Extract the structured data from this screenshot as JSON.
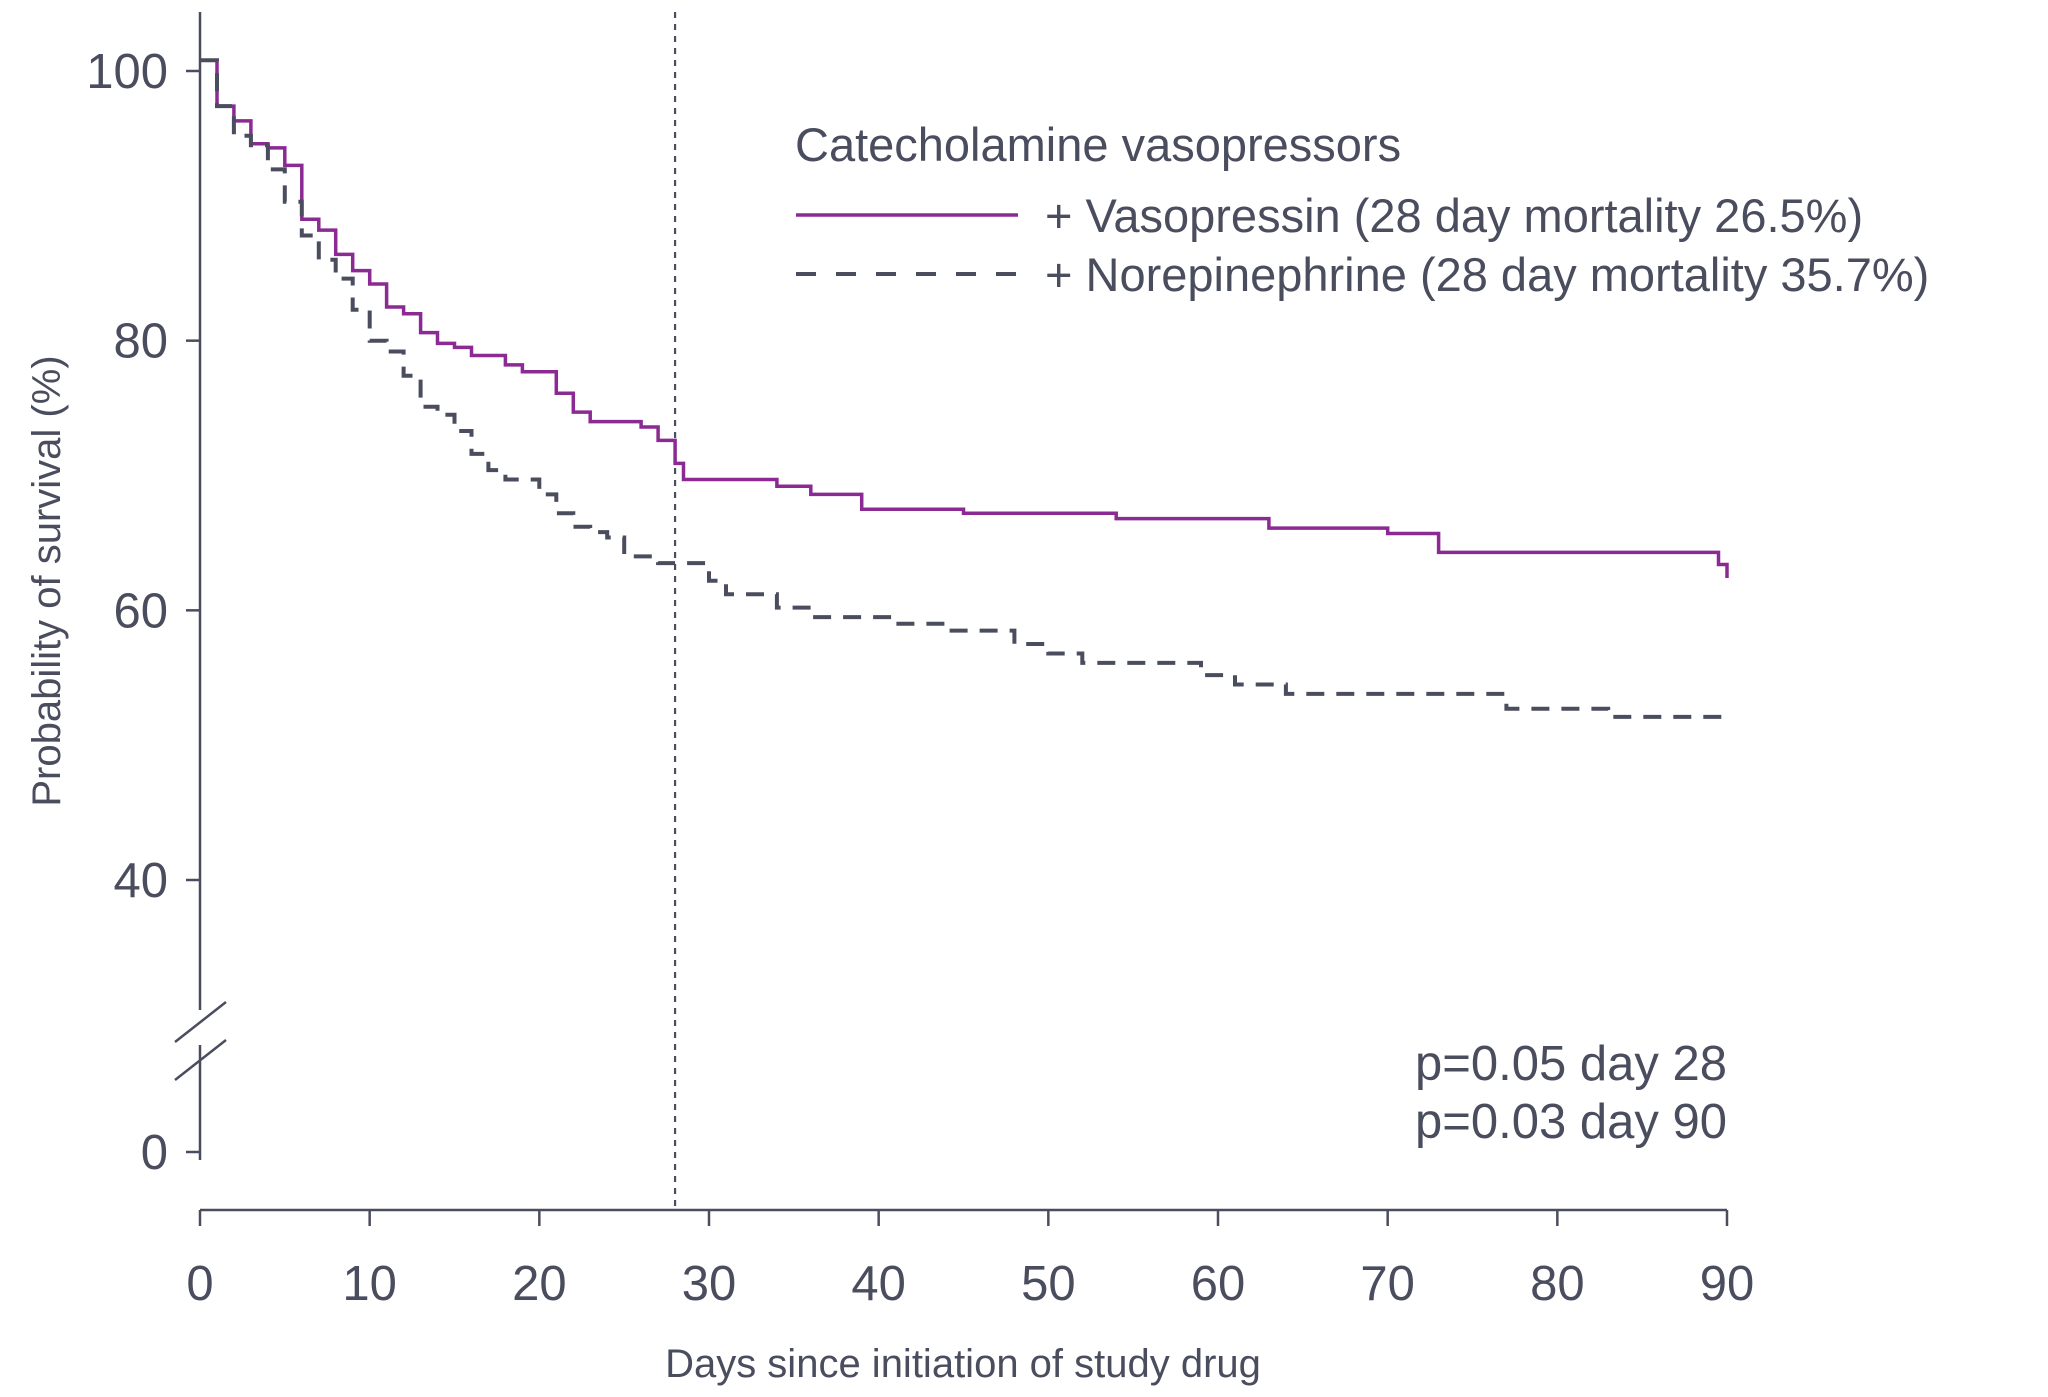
{
  "chart_data": {
    "type": "line",
    "subtype": "kaplan-meier step",
    "xlabel": "Days since initiation of study drug",
    "ylabel": "Probability of survival (%)",
    "xlim": [
      0,
      90
    ],
    "x_ticks": [
      0,
      10,
      20,
      30,
      40,
      50,
      60,
      70,
      80,
      90
    ],
    "y_ticks": [
      0,
      40,
      60,
      80,
      100
    ],
    "y_axis_break": "between 0 and 40",
    "grid": false,
    "legend_position": "top-right",
    "legend_title": "Catecholamine vasopressors",
    "reference_line_x": 28,
    "reference_line_style": "dotted",
    "annotations": [
      "p=0.05 day 28",
      "p=0.03 day 90"
    ],
    "series": [
      {
        "name": "+ Vasopressin (28 day mortality 26.5%)",
        "color": "#8b2a93",
        "style": "solid",
        "points": [
          [
            0,
            100.8
          ],
          [
            1,
            100.8
          ],
          [
            1,
            97.4
          ],
          [
            2,
            97.4
          ],
          [
            2,
            96.3
          ],
          [
            3,
            96.3
          ],
          [
            3,
            94.6
          ],
          [
            4,
            94.6
          ],
          [
            4,
            94.3
          ],
          [
            5,
            94.3
          ],
          [
            5,
            93.0
          ],
          [
            6,
            93.0
          ],
          [
            6,
            89.0
          ],
          [
            7,
            89.0
          ],
          [
            7,
            88.2
          ],
          [
            8,
            88.2
          ],
          [
            8,
            86.4
          ],
          [
            9,
            86.4
          ],
          [
            9,
            85.2
          ],
          [
            10,
            85.2
          ],
          [
            10,
            84.2
          ],
          [
            11,
            84.2
          ],
          [
            11,
            82.5
          ],
          [
            12,
            82.5
          ],
          [
            12,
            82.0
          ],
          [
            13,
            82.0
          ],
          [
            13,
            80.6
          ],
          [
            14,
            80.6
          ],
          [
            14,
            79.8
          ],
          [
            15,
            79.8
          ],
          [
            15,
            79.5
          ],
          [
            16,
            79.5
          ],
          [
            16,
            78.9
          ],
          [
            18,
            78.9
          ],
          [
            18,
            78.2
          ],
          [
            19,
            78.2
          ],
          [
            19,
            77.7
          ],
          [
            21,
            77.7
          ],
          [
            21,
            76.1
          ],
          [
            22,
            76.1
          ],
          [
            22,
            74.7
          ],
          [
            23,
            74.7
          ],
          [
            23,
            74.0
          ],
          [
            26,
            74.0
          ],
          [
            26,
            73.6
          ],
          [
            27,
            73.6
          ],
          [
            27,
            72.6
          ],
          [
            28,
            72.6
          ],
          [
            28,
            70.9
          ],
          [
            28.5,
            70.9
          ],
          [
            28.5,
            69.7
          ],
          [
            34,
            69.7
          ],
          [
            34,
            69.2
          ],
          [
            36,
            69.2
          ],
          [
            36,
            68.6
          ],
          [
            39,
            68.6
          ],
          [
            39,
            67.5
          ],
          [
            45,
            67.5
          ],
          [
            45,
            67.2
          ],
          [
            54,
            67.2
          ],
          [
            54,
            66.8
          ],
          [
            63,
            66.8
          ],
          [
            63,
            66.1
          ],
          [
            70,
            66.1
          ],
          [
            70,
            65.7
          ],
          [
            73,
            65.7
          ],
          [
            73,
            64.3
          ],
          [
            89.5,
            64.3
          ],
          [
            89.5,
            63.4
          ],
          [
            90,
            63.4
          ],
          [
            90,
            62.4
          ]
        ]
      },
      {
        "name": "+ Norepinephrine (28 day mortality 35.7%)",
        "color": "#4a4d5e",
        "style": "dashed",
        "points": [
          [
            0,
            100.8
          ],
          [
            1,
            100.8
          ],
          [
            1,
            97.4
          ],
          [
            2,
            97.4
          ],
          [
            2,
            95.2
          ],
          [
            3,
            95.2
          ],
          [
            3,
            94.5
          ],
          [
            4,
            94.5
          ],
          [
            4,
            92.7
          ],
          [
            5,
            92.7
          ],
          [
            5,
            90.3
          ],
          [
            6,
            90.3
          ],
          [
            6,
            87.8
          ],
          [
            7,
            87.8
          ],
          [
            7,
            86.0
          ],
          [
            8,
            86.0
          ],
          [
            8,
            84.6
          ],
          [
            9,
            84.6
          ],
          [
            9,
            82.3
          ],
          [
            10,
            82.3
          ],
          [
            10,
            80.0
          ],
          [
            11,
            80.0
          ],
          [
            11,
            79.2
          ],
          [
            12,
            79.2
          ],
          [
            12,
            77.4
          ],
          [
            13,
            77.4
          ],
          [
            13,
            75.1
          ],
          [
            14,
            75.1
          ],
          [
            14,
            74.5
          ],
          [
            15,
            74.5
          ],
          [
            15,
            73.3
          ],
          [
            16,
            73.3
          ],
          [
            16,
            71.6
          ],
          [
            17,
            71.6
          ],
          [
            17,
            70.4
          ],
          [
            18,
            70.4
          ],
          [
            18,
            69.7
          ],
          [
            20,
            69.7
          ],
          [
            20,
            68.6
          ],
          [
            21,
            68.6
          ],
          [
            21,
            67.2
          ],
          [
            22,
            67.2
          ],
          [
            22,
            66.2
          ],
          [
            23,
            66.2
          ],
          [
            23,
            65.8
          ],
          [
            24,
            65.8
          ],
          [
            24,
            65.4
          ],
          [
            25,
            65.4
          ],
          [
            25,
            64.0
          ],
          [
            27,
            64.0
          ],
          [
            27,
            63.5
          ],
          [
            30,
            63.5
          ],
          [
            30,
            62.2
          ],
          [
            31,
            62.2
          ],
          [
            31,
            61.2
          ],
          [
            34,
            61.2
          ],
          [
            34,
            60.2
          ],
          [
            36,
            60.2
          ],
          [
            36,
            59.5
          ],
          [
            41,
            59.5
          ],
          [
            41,
            59.0
          ],
          [
            44,
            59.0
          ],
          [
            44,
            58.5
          ],
          [
            48,
            58.5
          ],
          [
            48,
            57.5
          ],
          [
            50,
            57.5
          ],
          [
            50,
            56.8
          ],
          [
            52,
            56.8
          ],
          [
            52,
            56.1
          ],
          [
            59,
            56.1
          ],
          [
            59,
            55.2
          ],
          [
            61,
            55.2
          ],
          [
            61,
            54.5
          ],
          [
            64,
            54.5
          ],
          [
            64,
            53.8
          ],
          [
            77,
            53.8
          ],
          [
            77,
            52.7
          ],
          [
            83,
            52.7
          ],
          [
            83,
            52.1
          ],
          [
            90,
            52.1
          ]
        ]
      }
    ]
  }
}
